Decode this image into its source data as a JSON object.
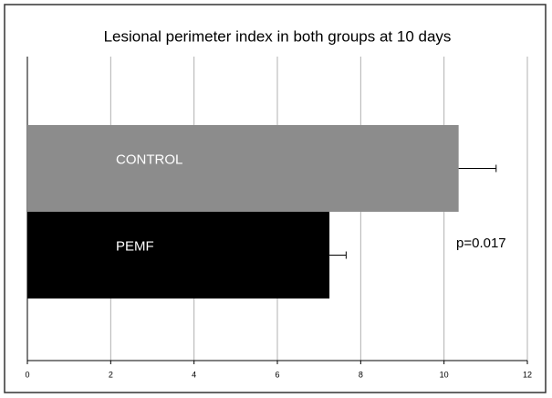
{
  "chart_data": {
    "type": "bar",
    "orientation": "horizontal",
    "title": "Lesional perimeter index in both groups at  10 days",
    "categories": [
      "CONTROL",
      "PEMF"
    ],
    "values": [
      10.35,
      7.25
    ],
    "errors": [
      0.9,
      0.4
    ],
    "colors": [
      "#8c8c8c",
      "#000000"
    ],
    "xlim": [
      0,
      12
    ],
    "xticks": [
      0,
      2,
      4,
      6,
      8,
      10,
      12
    ],
    "grid": true,
    "annotations": [
      "p=0.017"
    ]
  }
}
